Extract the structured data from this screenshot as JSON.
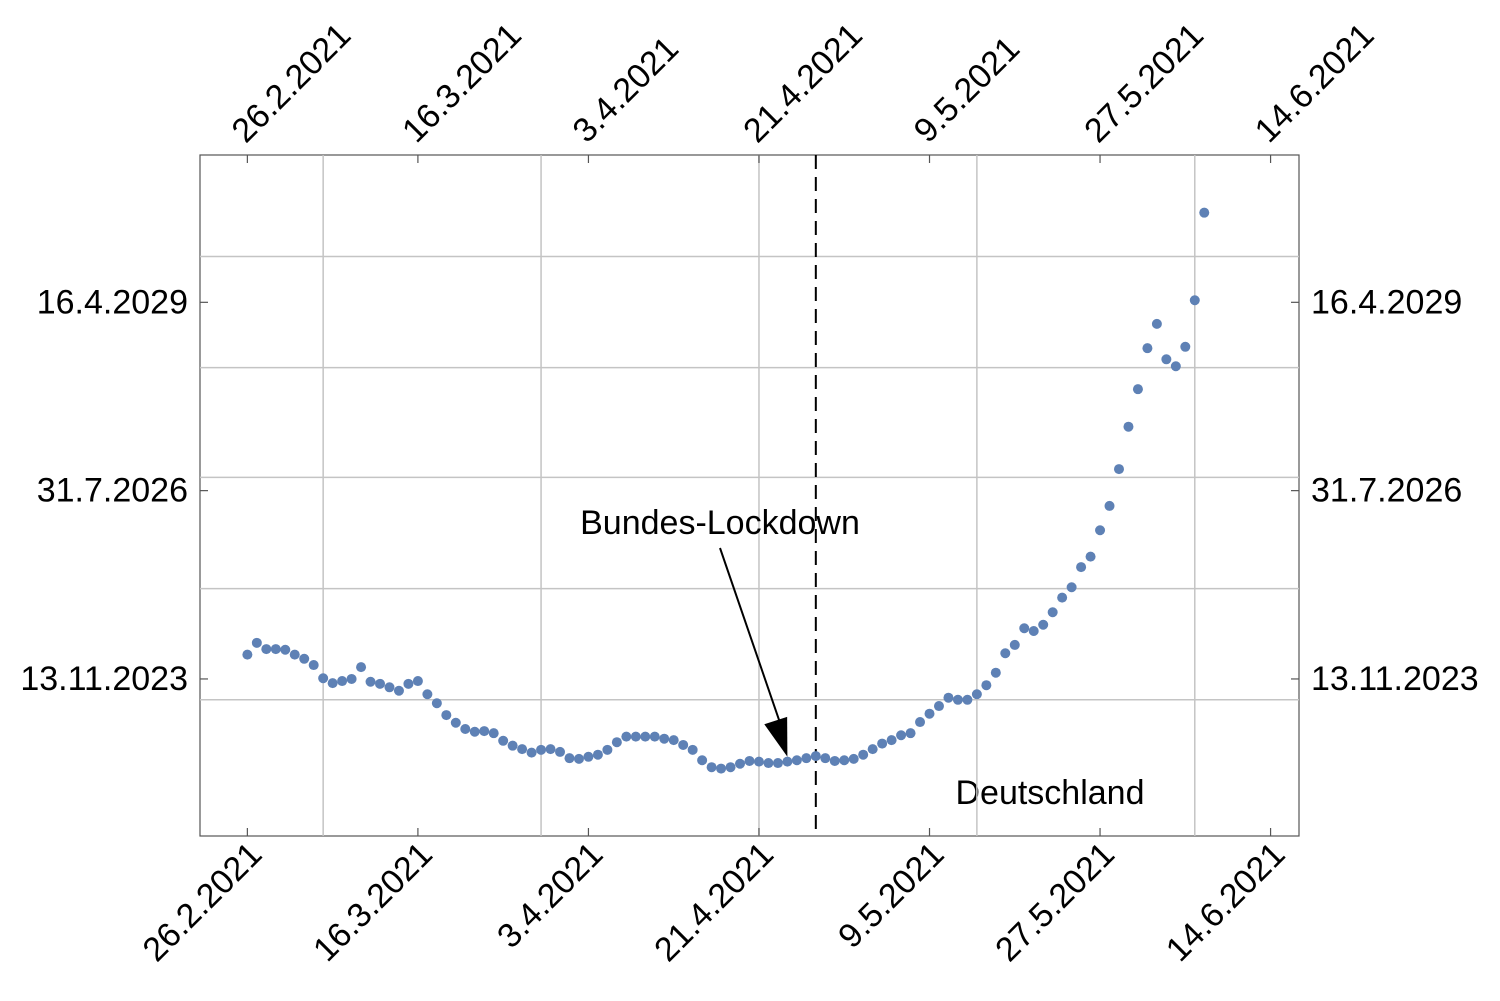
{
  "chart_data": {
    "type": "scatter",
    "x": [
      "2021-02-26",
      "2021-02-27",
      "2021-02-28",
      "2021-03-01",
      "2021-03-02",
      "2021-03-03",
      "2021-03-04",
      "2021-03-05",
      "2021-03-06",
      "2021-03-07",
      "2021-03-08",
      "2021-03-09",
      "2021-03-10",
      "2021-03-11",
      "2021-03-12",
      "2021-03-13",
      "2021-03-14",
      "2021-03-15",
      "2021-03-16",
      "2021-03-17",
      "2021-03-18",
      "2021-03-19",
      "2021-03-20",
      "2021-03-21",
      "2021-03-22",
      "2021-03-23",
      "2021-03-24",
      "2021-03-25",
      "2021-03-26",
      "2021-03-27",
      "2021-03-28",
      "2021-03-29",
      "2021-03-30",
      "2021-03-31",
      "2021-04-01",
      "2021-04-02",
      "2021-04-03",
      "2021-04-04",
      "2021-04-05",
      "2021-04-06",
      "2021-04-07",
      "2021-04-08",
      "2021-04-09",
      "2021-04-10",
      "2021-04-11",
      "2021-04-12",
      "2021-04-13",
      "2021-04-14",
      "2021-04-15",
      "2021-04-16",
      "2021-04-17",
      "2021-04-18",
      "2021-04-19",
      "2021-04-20",
      "2021-04-21",
      "2021-04-22",
      "2021-04-23",
      "2021-04-24",
      "2021-04-25",
      "2021-04-26",
      "2021-04-27",
      "2021-04-28",
      "2021-04-29",
      "2021-04-30",
      "2021-05-01",
      "2021-05-02",
      "2021-05-03",
      "2021-05-04",
      "2021-05-05",
      "2021-05-06",
      "2021-05-07",
      "2021-05-08",
      "2021-05-09",
      "2021-05-10",
      "2021-05-11",
      "2021-05-12",
      "2021-05-13",
      "2021-05-14",
      "2021-05-15",
      "2021-05-16",
      "2021-05-17",
      "2021-05-18",
      "2021-05-19",
      "2021-05-20",
      "2021-05-21",
      "2021-05-22",
      "2021-05-23",
      "2021-05-24",
      "2021-05-25",
      "2021-05-26",
      "2021-05-27",
      "2021-05-28",
      "2021-05-29",
      "2021-05-30",
      "2021-05-31",
      "2021-06-01",
      "2021-06-02",
      "2021-06-03",
      "2021-06-04",
      "2021-06-05",
      "2021-06-06",
      "2021-06-07"
    ],
    "series": [
      {
        "color": "#5e81b5",
        "values": [
          2024.22,
          2024.39,
          2024.3,
          2024.3,
          2024.29,
          2024.22,
          2024.16,
          2024.07,
          2023.88,
          2023.81,
          2023.84,
          2023.87,
          2024.04,
          2023.83,
          2023.8,
          2023.75,
          2023.7,
          2023.8,
          2023.84,
          2023.65,
          2023.52,
          2023.35,
          2023.24,
          2023.15,
          2023.11,
          2023.12,
          2023.09,
          2022.98,
          2022.91,
          2022.86,
          2022.81,
          2022.85,
          2022.86,
          2022.82,
          2022.73,
          2022.72,
          2022.75,
          2022.78,
          2022.85,
          2022.96,
          2023.04,
          2023.04,
          2023.04,
          2023.04,
          2023.01,
          2022.99,
          2022.92,
          2022.85,
          2022.7,
          2022.6,
          2022.58,
          2022.6,
          2022.65,
          2022.69,
          2022.68,
          2022.66,
          2022.66,
          2022.68,
          2022.7,
          2022.73,
          2022.76,
          2022.73,
          2022.69,
          2022.7,
          2022.72,
          2022.78,
          2022.86,
          2022.94,
          2022.99,
          2023.06,
          2023.09,
          2023.25,
          2023.37,
          2023.48,
          2023.6,
          2023.57,
          2023.57,
          2023.65,
          2023.78,
          2023.96,
          2024.24,
          2024.36,
          2024.6,
          2024.56,
          2024.65,
          2024.83,
          2025.04,
          2025.19,
          2025.48,
          2025.63,
          2026.01,
          2026.36,
          2026.89,
          2027.5,
          2028.04,
          2028.63,
          2028.98,
          2028.47,
          2028.37,
          2028.65,
          2029.32,
          2030.58
        ]
      }
    ],
    "xlim": [
      "2021-02-21",
      "2021-06-17"
    ],
    "xticks": [
      {
        "value": "2021-02-26",
        "label": "26.2.2021"
      },
      {
        "value": "2021-03-16",
        "label": "16.3.2021"
      },
      {
        "value": "2021-04-03",
        "label": "3.4.2021"
      },
      {
        "value": "2021-04-21",
        "label": "21.4.2021"
      },
      {
        "value": "2021-05-09",
        "label": "9.5.2021"
      },
      {
        "value": "2021-05-27",
        "label": "27.5.2021"
      },
      {
        "value": "2021-06-14",
        "label": "14.6.2021"
      }
    ],
    "xgrid": [
      "2021-03-06",
      "2021-03-29",
      "2021-04-21",
      "2021-05-14",
      "2021-06-06"
    ],
    "ylim": [
      2021.61,
      2031.41
    ],
    "yticks": [
      {
        "value": 2023.87,
        "label": "13.11.2023"
      },
      {
        "value": 2026.58,
        "label": "31.7.2026"
      },
      {
        "value": 2029.29,
        "label": "16.4.2029"
      }
    ],
    "ygrid": [
      2023.57,
      2025.17,
      2026.77,
      2028.35,
      2029.95
    ],
    "vline": "2021-04-27",
    "annotation": {
      "text": "Bundes-Lockdown",
      "x": "2021-04-24",
      "y": 2022.75
    },
    "label": "Deutschland"
  }
}
